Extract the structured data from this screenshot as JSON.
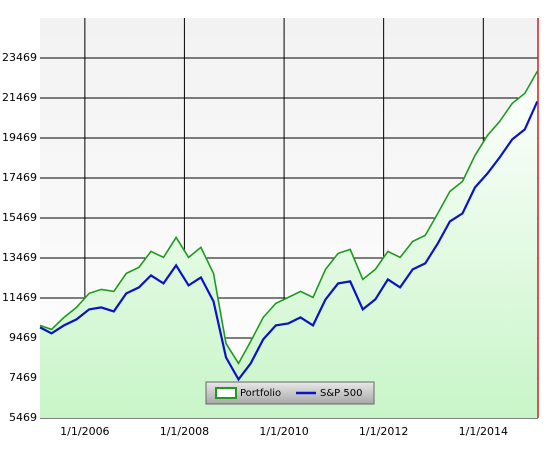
{
  "chart_data": {
    "type": "line",
    "x": [
      "2005-02-06",
      "2005-05-01",
      "2005-08-01",
      "2005-11-01",
      "2006-02-01",
      "2006-05-01",
      "2006-08-01",
      "2006-11-01",
      "2007-02-01",
      "2007-05-01",
      "2007-08-01",
      "2007-11-01",
      "2008-02-01",
      "2008-05-01",
      "2008-08-01",
      "2008-11-01",
      "2009-02-01",
      "2009-05-01",
      "2009-08-01",
      "2009-11-01",
      "2010-02-01",
      "2010-05-01",
      "2010-08-01",
      "2010-11-01",
      "2011-02-01",
      "2011-05-01",
      "2011-08-01",
      "2011-11-01",
      "2012-02-01",
      "2012-05-01",
      "2012-08-01",
      "2012-11-01",
      "2013-02-01",
      "2013-05-01",
      "2013-08-01",
      "2013-11-01",
      "2014-02-01",
      "2014-05-01",
      "2014-08-01",
      "2014-11-01",
      "2015-02-01"
    ],
    "series": [
      {
        "name": "Portfolio",
        "color": "#1f9a1f",
        "values": [
          10100,
          9900,
          10500,
          11000,
          11700,
          11900,
          11800,
          12700,
          13000,
          13800,
          13500,
          14500,
          13500,
          14000,
          12700,
          9200,
          8200,
          9300,
          10500,
          11200,
          11500,
          11800,
          11500,
          12900,
          13700,
          13900,
          12400,
          12900,
          13800,
          13500,
          14300,
          14600,
          15700,
          16800,
          17300,
          18600,
          19600,
          20300,
          21200,
          21700,
          22800
        ]
      },
      {
        "name": "S&P 500",
        "color": "#0a14c4",
        "values": [
          10000,
          9700,
          10100,
          10400,
          10900,
          11000,
          10800,
          11700,
          12000,
          12600,
          12200,
          13100,
          12100,
          12500,
          11300,
          8500,
          7400,
          8200,
          9400,
          10100,
          10200,
          10500,
          10100,
          11400,
          12200,
          12300,
          10900,
          11400,
          12400,
          12000,
          12900,
          13200,
          14200,
          15300,
          15700,
          17000,
          17700,
          18500,
          19400,
          19900,
          21300
        ]
      }
    ],
    "xlim": [
      "2005-02-06",
      "2015-02-06"
    ],
    "xticks": [
      {
        "value": "2006-01-01",
        "label": "1/1/2006"
      },
      {
        "value": "2008-01-01",
        "label": "1/1/2008"
      },
      {
        "value": "2010-01-01",
        "label": "1/1/2010"
      },
      {
        "value": "2012-01-01",
        "label": "1/1/2012"
      },
      {
        "value": "2014-01-01",
        "label": "1/1/2014"
      }
    ],
    "ylim": [
      5469,
      25469
    ],
    "yticks": [
      5469,
      7469,
      9469,
      11469,
      13469,
      15469,
      17469,
      19469,
      21469,
      23469
    ],
    "grid": true
  }
}
